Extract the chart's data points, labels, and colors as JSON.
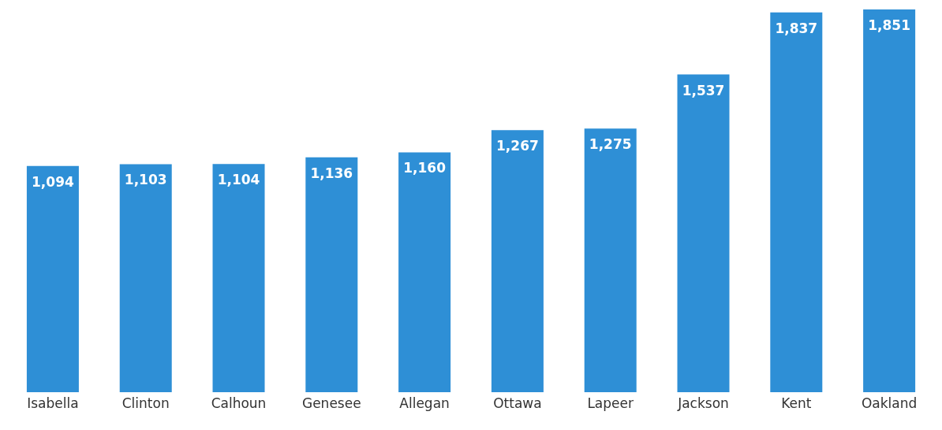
{
  "chart_data": {
    "type": "bar",
    "categories": [
      "Isabella",
      "Clinton",
      "Calhoun",
      "Genesee",
      "Allegan",
      "Ottawa",
      "Lapeer",
      "Jackson",
      "Kent",
      "Oakland"
    ],
    "values": [
      1094,
      1103,
      1104,
      1136,
      1160,
      1267,
      1275,
      1537,
      1837,
      1851
    ],
    "value_labels": [
      "1,094",
      "1,103",
      "1,104",
      "1,136",
      "1,160",
      "1,267",
      "1,275",
      "1,537",
      "1,837",
      "1,851"
    ],
    "color": "#2e8fd6"
  }
}
